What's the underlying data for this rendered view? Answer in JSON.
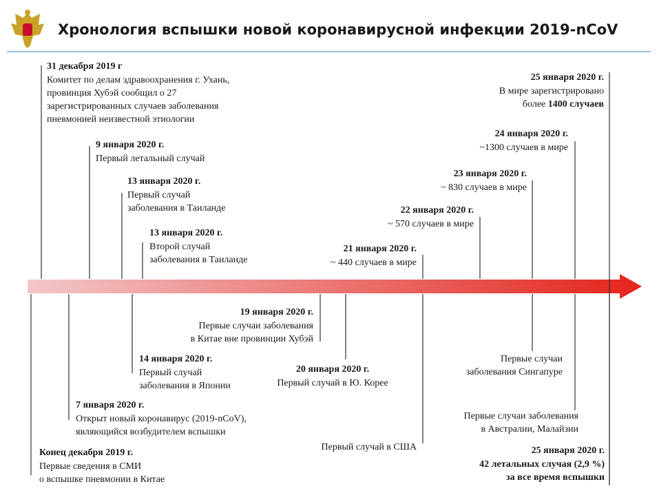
{
  "header": {
    "title": "Хронология вспышки новой коронавирусной инфекции 2019-nCoV"
  },
  "events": [
    {
      "date": "31 декабря 2019 г",
      "lines": [
        "Комитет по делам здравоохранения г. Ухань,",
        "провинция Хубэй  сообщил о 27",
        "зарегистрированных случаев заболевания",
        "пневмонией неизвестной этиологии"
      ]
    },
    {
      "date": "9 января 2020 г.",
      "lines": [
        "Первый летальный случай"
      ],
      "color": "#e3241b"
    },
    {
      "date": "13 января 2020 г.",
      "lines": [
        "Первый случай",
        "заболевания в Таиланде"
      ]
    },
    {
      "date": "13 января 2020 г.",
      "lines": [
        "Второй случай",
        "заболевания в Таиланде"
      ]
    },
    {
      "date": "21 января 2020 г.",
      "lines": [
        "~ 440 случаев в мире"
      ]
    },
    {
      "date": "22 января 2020 г.",
      "lines": [
        "~ 570 случаев в мире"
      ]
    },
    {
      "date": "23 января 2020 г.",
      "lines": [
        "~ 830 случаев в мире"
      ]
    },
    {
      "date": "24 января 2020 г.",
      "lines": [
        "~1300 случаев в мире"
      ]
    },
    {
      "date": "25 января 2020 г.",
      "lines": [
        "В мире зарегистрировано",
        {
          "text": "более",
          "bold": "1400 случаев"
        }
      ]
    },
    {
      "date": "Конец декабря 2019 г.",
      "lines": [
        "Первые сведения в СМИ",
        "о вспышке пневмонии в Китае"
      ]
    },
    {
      "date": "7 января 2020 г.",
      "lines": [
        "Открыт новый коронавирус (2019-nCoV),",
        "являющийся возбудителем вспышки"
      ]
    },
    {
      "date": "14 января 2020 г.",
      "lines": [
        "Первый случай",
        "заболевания в Японии"
      ]
    },
    {
      "date": "19 января 2020 г.",
      "lines": [
        "Первые случаи заболевания",
        "в Китае вне провинции Хубэй"
      ]
    },
    {
      "date": "20 января 2020 г.",
      "lines": [
        "Первый случай в Ю. Корее"
      ]
    },
    {
      "lines": [
        "Первый случай в США"
      ]
    },
    {
      "lines": [
        "Первые случаи",
        "заболевания Сингапуре"
      ]
    },
    {
      "lines": [
        "Первые случаи заболевания",
        "в Австралии, Малайзии"
      ]
    },
    {
      "date": "25 января 2020 г.",
      "lines": [
        {
          "bold": "42 летальных случая (2,9 %)"
        },
        {
          "bold": "за все время вспышки"
        }
      ],
      "color": "#e3241b"
    }
  ]
}
